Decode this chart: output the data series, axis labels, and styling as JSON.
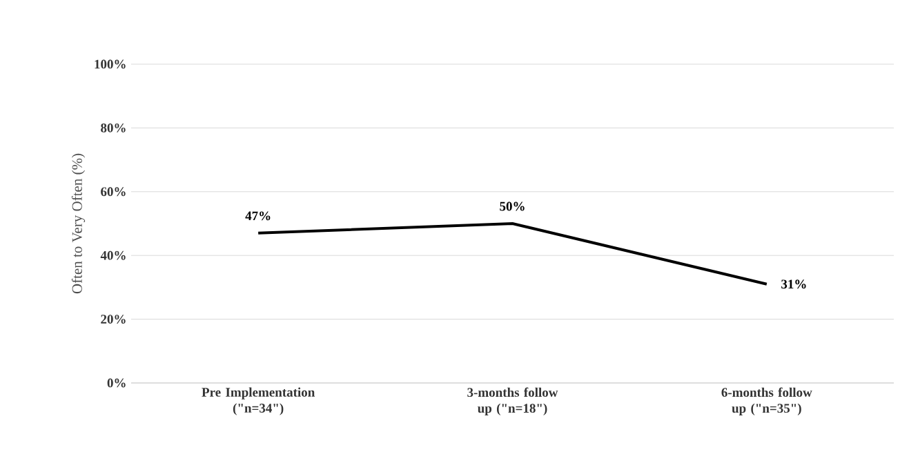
{
  "chart_data": {
    "type": "line",
    "ylabel": "Often to Very Often (%)",
    "categories": [
      "Pre Implementation (\"n=34\")",
      "3-months follow up (\"n=18\")",
      "6-months follow up (\"n=35\")"
    ],
    "series": [
      {
        "color": "#000000",
        "values": [
          47,
          50,
          31
        ],
        "value_labels": [
          "47%",
          "50%",
          "31%"
        ]
      }
    ],
    "ylim": [
      0,
      100
    ],
    "yticks": [
      {
        "value": 0,
        "label": "0%"
      },
      {
        "value": 20,
        "label": "20%"
      },
      {
        "value": 40,
        "label": "40%"
      },
      {
        "value": 60,
        "label": "60%"
      },
      {
        "value": 80,
        "label": "80%"
      },
      {
        "value": 100,
        "label": "100%"
      }
    ],
    "grid": "y",
    "marker": "none",
    "line_style": "solid"
  }
}
